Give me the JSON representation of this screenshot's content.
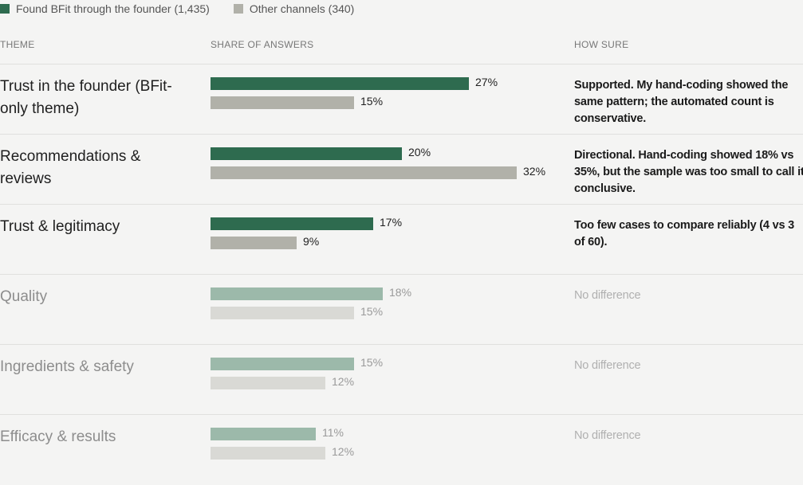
{
  "legend": {
    "founder_label": "Found BFit through the founder (1,435)",
    "other_label": "Other channels (340)"
  },
  "headers": {
    "theme": "THEME",
    "share": "SHARE OF ANSWERS",
    "how_sure": "HOW SURE"
  },
  "colors": {
    "founder": "#2e6b4f",
    "other": "#b1b1a9",
    "founder_faded": "#9cb9aa",
    "other_faded": "#d9d9d5"
  },
  "chart_data": {
    "type": "bar",
    "orientation": "horizontal",
    "categories": [
      "Trust in the founder (BFit-only theme)",
      "Recommendations & reviews",
      "Trust & legitimacy",
      "Quality",
      "Ingredients & safety",
      "Efficacy & results"
    ],
    "series": [
      {
        "name": "Found BFit through the founder (1,435)",
        "values": [
          27,
          20,
          17,
          18,
          15,
          11
        ]
      },
      {
        "name": "Other channels (340)",
        "values": [
          15,
          32,
          9,
          15,
          12,
          12
        ]
      }
    ],
    "unit": "%",
    "xlim": [
      0,
      45
    ]
  },
  "rows": [
    {
      "theme": "Trust in the founder (BFit-only theme)",
      "founder": 27,
      "founder_label": "27%",
      "other": 15,
      "other_label": "15%",
      "note": "Supported. My hand-coding showed the same pattern; the automated count is conservative.",
      "faded": false
    },
    {
      "theme": "Recommendations & reviews",
      "founder": 20,
      "founder_label": "20%",
      "other": 32,
      "other_label": "32%",
      "note": "Directional. Hand-coding showed 18% vs 35%, but the sample was too small to call it conclusive.",
      "faded": false
    },
    {
      "theme": "Trust & legitimacy",
      "founder": 17,
      "founder_label": "17%",
      "other": 9,
      "other_label": "9%",
      "note": "Too few cases to compare reliably (4 vs 3 of 60).",
      "faded": false
    },
    {
      "theme": "Quality",
      "founder": 18,
      "founder_label": "18%",
      "other": 15,
      "other_label": "15%",
      "note": "No difference",
      "faded": true
    },
    {
      "theme": "Ingredients & safety",
      "founder": 15,
      "founder_label": "15%",
      "other": 12,
      "other_label": "12%",
      "note": "No difference",
      "faded": true
    },
    {
      "theme": "Efficacy & results",
      "founder": 11,
      "founder_label": "11%",
      "other": 12,
      "other_label": "12%",
      "note": "No difference",
      "faded": true
    }
  ]
}
